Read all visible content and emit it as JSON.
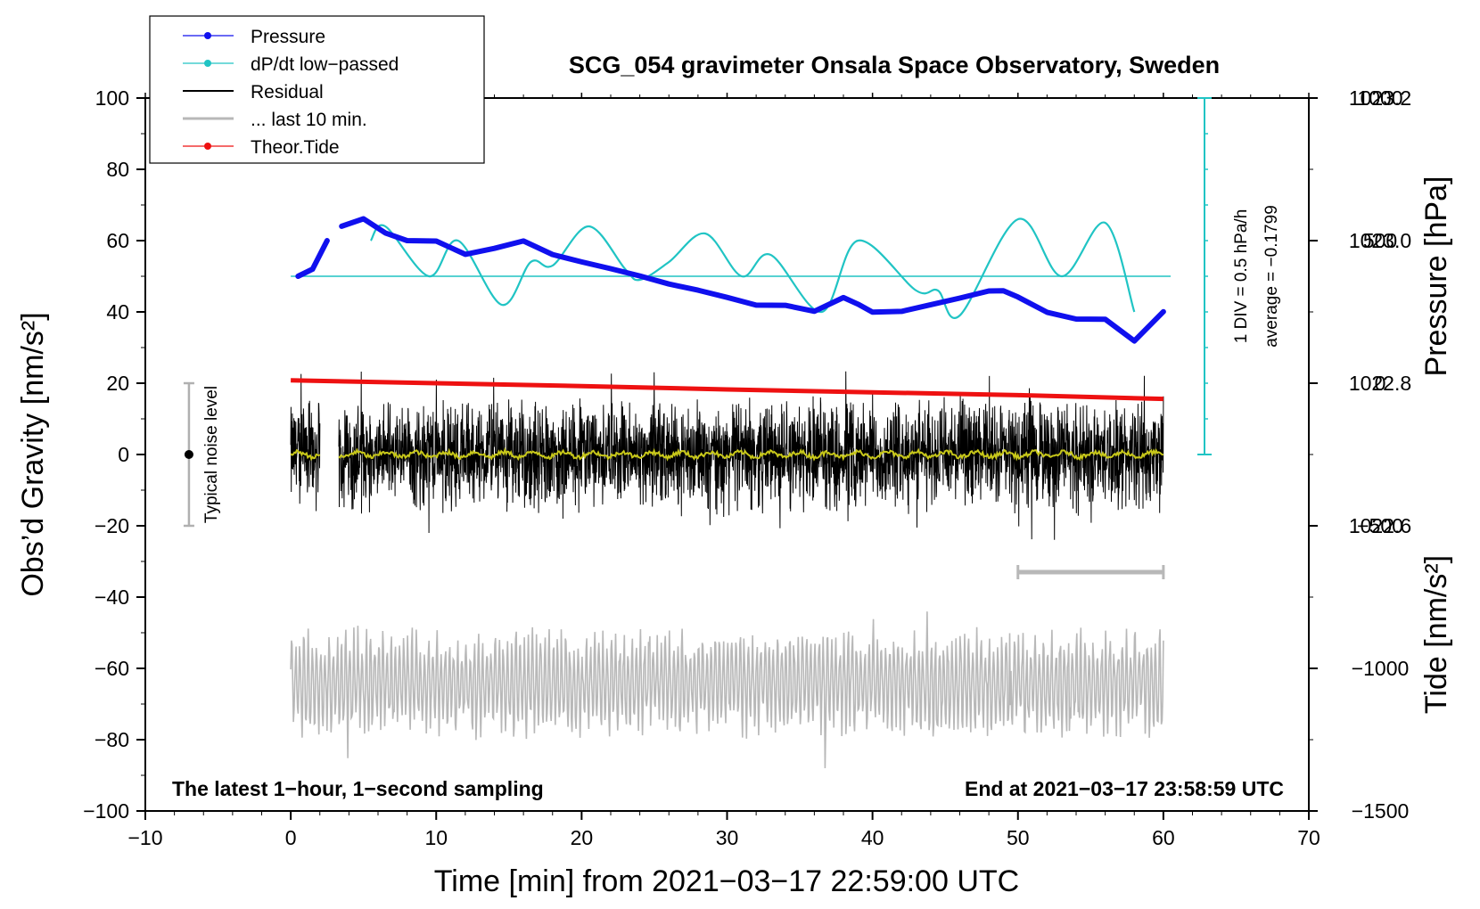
{
  "chart_data": {
    "type": "line",
    "title": "SCG_054 gravimeter Onsala Space Observatory, Sweden",
    "xlabel": "Time [min] from 2021−03−17 22:59:00 UTC",
    "ylabel_left": "Obs’d Gravity [nm/s²]",
    "ylabel_right_top": "Pressure [hPa]",
    "ylabel_right_bottom": "Tide [nm/s²]",
    "xlim": [
      -10,
      70
    ],
    "ylim": [
      -100,
      100
    ],
    "pressure_lim": [
      1022.2,
      1023.2
    ],
    "tide_lim": [
      -1500,
      1000
    ],
    "x_ticks": [
      "−10",
      "0",
      "10",
      "20",
      "30",
      "40",
      "50",
      "60",
      "70"
    ],
    "y_ticks": [
      "100",
      "80",
      "60",
      "40",
      "20",
      "0",
      "−20",
      "−40",
      "−60",
      "−80",
      "−100"
    ],
    "pressure_ticks": [
      "1023.2",
      "1023.0",
      "1022.8",
      "1022.6"
    ],
    "tide_ticks": [
      "1000",
      "500",
      "0",
      "−500",
      "−1000",
      "−1500"
    ],
    "legend": [
      {
        "label": "Pressure",
        "color": "#1010ee",
        "marker": true
      },
      {
        "label": "dP/dt low−passed",
        "color": "#20c4c4",
        "marker": true
      },
      {
        "label": "Residual",
        "color": "#000000",
        "marker": false
      },
      {
        "label": "... last 10 min.",
        "color": "#b8b8b8",
        "marker": false
      },
      {
        "label": "Theor.Tide",
        "color": "#ee1111",
        "marker": true
      }
    ],
    "series": [
      {
        "name": "Pressure",
        "unit": "hPa",
        "x": [
          0.5,
          1.5,
          2.5,
          3.5,
          5.0,
          6.5,
          8.0,
          10.0,
          12.0,
          14.0,
          16.0,
          18.0,
          20.0,
          22.0,
          24.0,
          26.0,
          28.0,
          30.0,
          32.0,
          34.0,
          36.0,
          38.0,
          39.0,
          40.0,
          42.0,
          44.0,
          46.0,
          48.0,
          49.0,
          50.0,
          52.0,
          54.0,
          56.0,
          58.0,
          60.0
        ],
        "values": [
          1022.95,
          1022.97,
          1023.0,
          1023.02,
          1023.03,
          1023.01,
          1023.0,
          1023.0,
          1022.98,
          1022.99,
          1023.0,
          1022.98,
          1022.97,
          1022.96,
          1022.95,
          1022.94,
          1022.93,
          1022.92,
          1022.91,
          1022.91,
          1022.9,
          1022.92,
          1022.91,
          1022.9,
          1022.9,
          1022.91,
          1022.92,
          1022.93,
          1022.93,
          1022.92,
          1022.9,
          1022.89,
          1022.89,
          1022.86,
          1022.9
        ]
      },
      {
        "name": "dP/dt low−passed",
        "unit": "hPa/h",
        "average": -0.1799,
        "div_label": "1 DIV = 0.5 hPa/h",
        "average_label": "average = −0.1799",
        "x": [
          5.5,
          6.5,
          9.5,
          11.5,
          14.5,
          16.5,
          18.0,
          20.5,
          23.0,
          24.0,
          26.0,
          28.5,
          31.0,
          33.0,
          36.5,
          39.0,
          43.0,
          44.5,
          46.0,
          50.0,
          53.0,
          56.0,
          58.0
        ],
        "values": [
          -0.5,
          -0.7,
          0.0,
          -0.5,
          0.4,
          -0.2,
          -0.15,
          -0.7,
          -0.1,
          0.05,
          -0.2,
          -0.6,
          0.0,
          -0.3,
          0.5,
          -0.5,
          0.2,
          0.2,
          0.55,
          -0.8,
          0.0,
          -0.75,
          0.5
        ]
      },
      {
        "name": "Residual",
        "unit": "nm/s²",
        "x": [
          0,
          60
        ],
        "amplitude": 14,
        "peaks": [
          25,
          -27,
          -24,
          23
        ]
      },
      {
        "name": "... last 10 min.",
        "unit": "nm/s²",
        "x_range": [
          50,
          60
        ]
      },
      {
        "name": "Theor.Tide",
        "unit": "nm/s²",
        "x": [
          0,
          10,
          20,
          30,
          40,
          50,
          60
        ],
        "values": [
          10,
          0,
          -10,
          -22,
          -32,
          -42,
          -55
        ]
      }
    ],
    "annotations": {
      "noise_label": "Typical noise level",
      "noise_range": [
        -20,
        20
      ],
      "left_note": "The latest 1−hour, 1−second sampling",
      "right_note": "End at 2021−03−17 23:58:59 UTC"
    }
  },
  "colors": {
    "pressure": "#1010ee",
    "dpdt": "#20c4c4",
    "residual": "#000000",
    "residual_smooth": "#c8c81a",
    "last10": "#b8b8b8",
    "tide": "#ee1111"
  }
}
